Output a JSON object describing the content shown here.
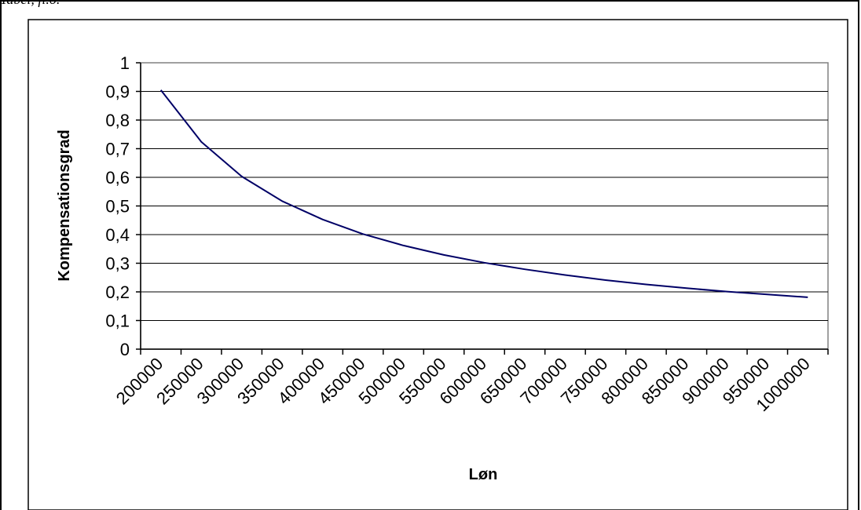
{
  "page": {
    "caption": "Tabel, fl.o."
  },
  "colors": {
    "line": "#000066",
    "grid": "#000000",
    "axis": "#000000",
    "background": "#ffffff"
  },
  "chart_data": {
    "type": "line",
    "title": "",
    "xlabel": "Løn",
    "ylabel": "Kompensationsgrad",
    "ylim": [
      0,
      1
    ],
    "y_ticks": [
      "0",
      "0,1",
      "0,2",
      "0,3",
      "0,4",
      "0,5",
      "0,6",
      "0,7",
      "0,8",
      "0,9",
      "1"
    ],
    "grid": "horizontal",
    "legend": "none",
    "categories": [
      "200000",
      "250000",
      "300000",
      "350000",
      "400000",
      "450000",
      "500000",
      "550000",
      "600000",
      "650000",
      "700000",
      "750000",
      "800000",
      "850000",
      "900000",
      "950000",
      "1000000"
    ],
    "series": [
      {
        "values": [
          0.905,
          0.724,
          0.603,
          0.517,
          0.453,
          0.402,
          0.362,
          0.329,
          0.302,
          0.279,
          0.259,
          0.241,
          0.226,
          0.213,
          0.201,
          0.191,
          0.181
        ]
      }
    ]
  }
}
